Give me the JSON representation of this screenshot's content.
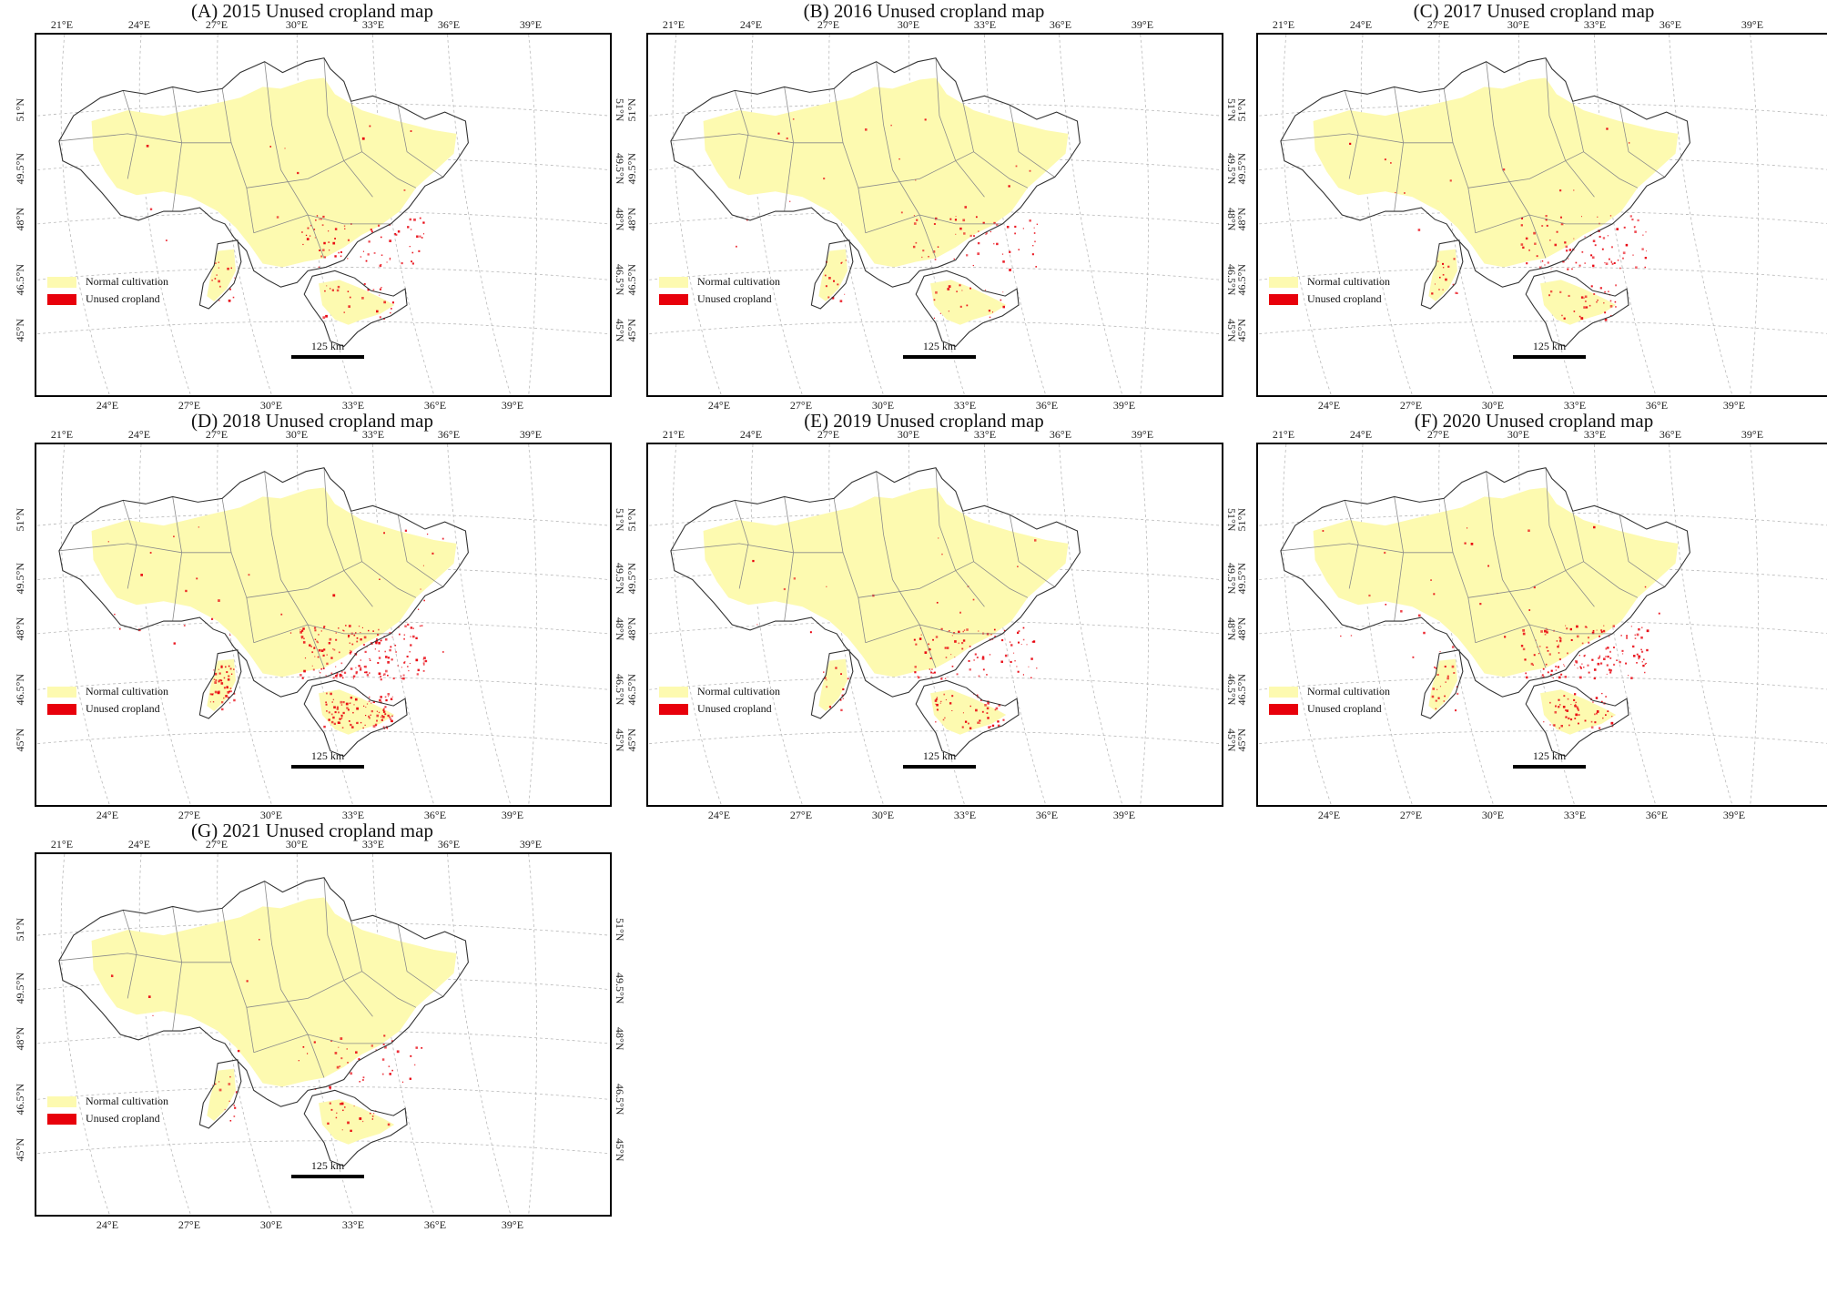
{
  "colors": {
    "normal_cultivation": "#fdfab0",
    "unused_cropland": "#e8000b",
    "border": "#555555",
    "graticule": "#b8b8b8"
  },
  "legend": {
    "normal_label": "Normal cultivation",
    "unused_label": "Unused cropland"
  },
  "scale_label": "125 km",
  "axes": {
    "top_lon": [
      "21°E",
      "24°E",
      "27°E",
      "30°E",
      "33°E",
      "36°E",
      "39°E"
    ],
    "bottom_lon": [
      "24°E",
      "27°E",
      "30°E",
      "33°E",
      "36°E",
      "39°E"
    ],
    "left_lat": [
      "51°N",
      "49.5°N",
      "48°N",
      "46.5°N",
      "45°N"
    ],
    "right_lat": [
      "51°N",
      "49.5°N",
      "48°N",
      "46.5°N",
      "45°N"
    ]
  },
  "panels": [
    {
      "title": "(A) 2015 Unused cropland map",
      "unused_intensity": 0.25
    },
    {
      "title": "(B) 2016 Unused cropland map",
      "unused_intensity": 0.2
    },
    {
      "title": "(C) 2017 Unused cropland map",
      "unused_intensity": 0.3
    },
    {
      "title": "(D) 2018 Unused cropland map",
      "unused_intensity": 0.8
    },
    {
      "title": "(E) 2019 Unused cropland map",
      "unused_intensity": 0.35
    },
    {
      "title": "(F) 2020 Unused cropland map",
      "unused_intensity": 0.55
    },
    {
      "title": "(G) 2021 Unused cropland map",
      "unused_intensity": 0.15
    }
  ]
}
